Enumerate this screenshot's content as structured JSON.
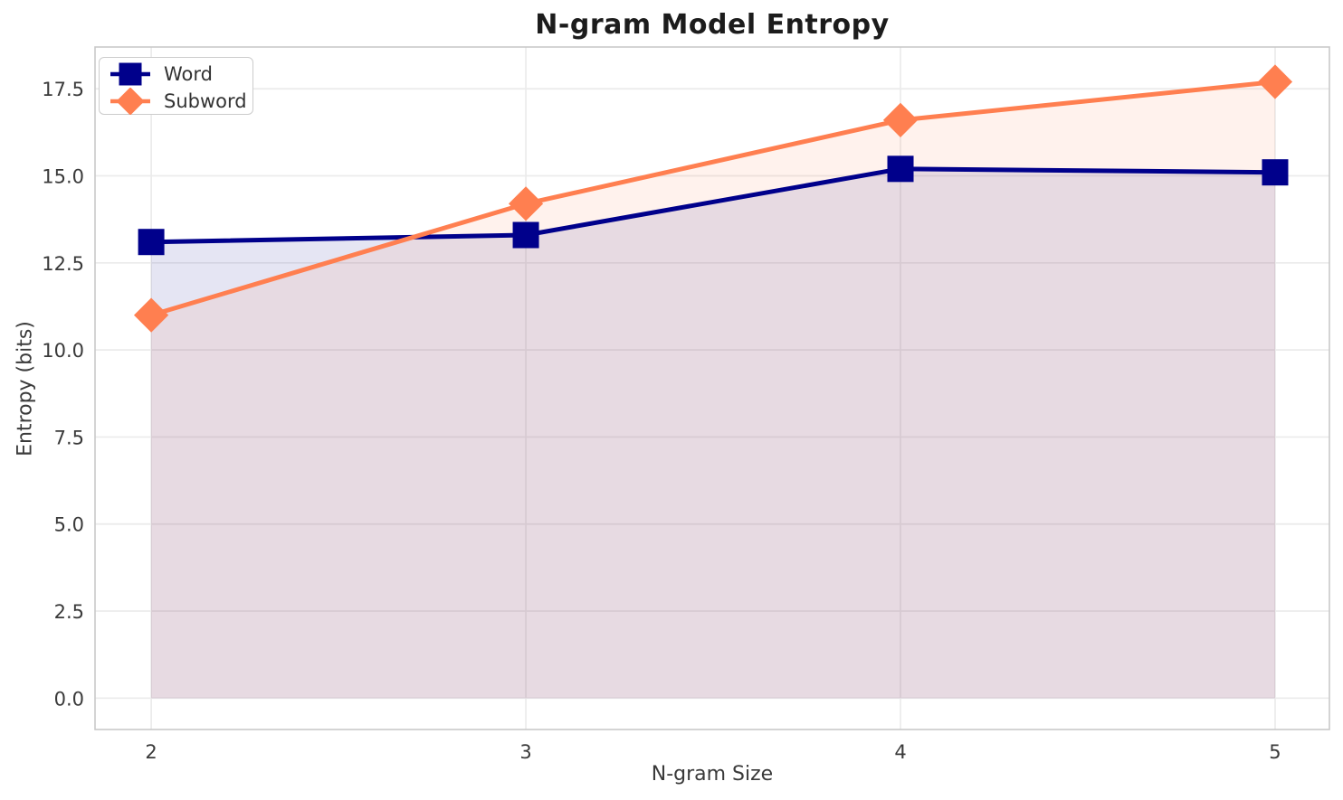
{
  "chart_data": {
    "type": "line",
    "title": "N-gram Model Entropy",
    "xlabel": "N-gram Size",
    "ylabel": "Entropy (bits)",
    "x": [
      2,
      3,
      4,
      5
    ],
    "series": [
      {
        "name": "Word",
        "values": [
          13.1,
          13.3,
          15.2,
          15.1
        ],
        "color": "#00008B",
        "marker": "square",
        "fill_opacity": 0.1
      },
      {
        "name": "Subword",
        "values": [
          11.0,
          14.2,
          16.6,
          17.7
        ],
        "color": "#FF7F50",
        "marker": "diamond",
        "fill_opacity": 0.1
      }
    ],
    "xticks": [
      2,
      3,
      4,
      5
    ],
    "xtick_labels": [
      "2",
      "3",
      "4",
      "5"
    ],
    "yticks": [
      0,
      2.5,
      5,
      7.5,
      10,
      12.5,
      15,
      17.5
    ],
    "ytick_labels": [
      "0.0",
      "2.5",
      "5.0",
      "7.5",
      "10.0",
      "12.5",
      "15.0",
      "17.5"
    ],
    "xlim": [
      1.85,
      5.145
    ],
    "ylim": [
      -0.9,
      18.7
    ],
    "area_baseline": 0,
    "grid": true,
    "legend_position": "upper left",
    "line_width": 5
  }
}
